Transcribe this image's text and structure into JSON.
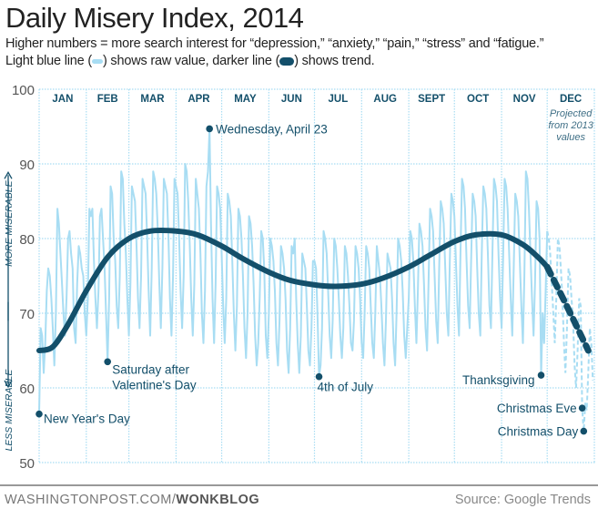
{
  "title": "Daily Misery Index, 2014",
  "subtitle_line1": "Higher numbers = more search interest for “depression,” “anxiety,” “pain,” “stress” and “fatigue.”",
  "legend": {
    "light_pre": "Light blue line (",
    "light_post": ") shows raw value, darker line (",
    "dark_post": ") shows trend."
  },
  "footer": {
    "site": "WASHINGTONPOST.COM/",
    "blog": "WONKBLOG",
    "source": "Source: Google Trends"
  },
  "colors": {
    "raw": "#a8ddf3",
    "trend": "#134f6a",
    "grid": "#a8ddf3",
    "label": "#134f6a"
  },
  "chart_data": {
    "type": "line",
    "title": "Daily Misery Index, 2014",
    "ylim": [
      50,
      100
    ],
    "yticks": [
      "50",
      "60",
      "70",
      "80",
      "90",
      "100"
    ],
    "ylabel_top": "MORE MISERABLE",
    "ylabel_bottom": "LESS MISERABLE",
    "grid": true,
    "months": [
      "JAN",
      "FEB",
      "MAR",
      "APR",
      "MAY",
      "JUN",
      "JUL",
      "AUG",
      "SEPT",
      "OCT",
      "NOV",
      "DEC"
    ],
    "month_days": [
      31,
      28,
      31,
      30,
      31,
      30,
      31,
      31,
      30,
      31,
      30,
      31
    ],
    "projection_note": [
      "Projected",
      "from 2013",
      "values"
    ],
    "projected_from_month": "DEC",
    "series": [
      {
        "label": "raw",
        "values": [
          56.5,
          68,
          67,
          62,
          66,
          73,
          76,
          75,
          72,
          68,
          63,
          70,
          84,
          82,
          78,
          74,
          70,
          67,
          72,
          80,
          81,
          78,
          76,
          68,
          66,
          74,
          79,
          78,
          76,
          75,
          70,
          67,
          72,
          84,
          83,
          84,
          77,
          72,
          68,
          73,
          83,
          84,
          80,
          76,
          70,
          63.5,
          72,
          87,
          86,
          80,
          77,
          71,
          68,
          75,
          89,
          88,
          82,
          78,
          72,
          67,
          74,
          87,
          86,
          85,
          79,
          72,
          68,
          75,
          88,
          87,
          86,
          80,
          73,
          67,
          76,
          89,
          88,
          86,
          81,
          74,
          68,
          76,
          88,
          87,
          86,
          80,
          72,
          67,
          75,
          88,
          87,
          86,
          80,
          73,
          68,
          75,
          90,
          89,
          85,
          79,
          72,
          67,
          74,
          88,
          86,
          84,
          78,
          70,
          66,
          73,
          87,
          89,
          94.7,
          82,
          72,
          66,
          74,
          87,
          86,
          84,
          78,
          71,
          66,
          72,
          86,
          85,
          83,
          77,
          70,
          65,
          71,
          84,
          83,
          80,
          75,
          68,
          64,
          70,
          83,
          82,
          79,
          74,
          67,
          63,
          66,
          72,
          81,
          80,
          76,
          67,
          64,
          70,
          80,
          79,
          77,
          73,
          66,
          63,
          69,
          79,
          78,
          76,
          72,
          65,
          62,
          68,
          79,
          78,
          80,
          72,
          66,
          62,
          67,
          78,
          77,
          76,
          71,
          65,
          63,
          68,
          77,
          77,
          76,
          70,
          61.5,
          63,
          68,
          81,
          80,
          78,
          73,
          67,
          64,
          69,
          80,
          79,
          76,
          72,
          67,
          64,
          68,
          79,
          78,
          75,
          71,
          66,
          65,
          69,
          79,
          78,
          76,
          72,
          66,
          64,
          70,
          79,
          78,
          76,
          71,
          66,
          64,
          70,
          79,
          77,
          75,
          71,
          66,
          63,
          69,
          78,
          77,
          76,
          72,
          66,
          63,
          70,
          80,
          79,
          77,
          73,
          67,
          64,
          68,
          72,
          81,
          80,
          77,
          71,
          66,
          73,
          82,
          81,
          79,
          74,
          68,
          65,
          74,
          84,
          83,
          81,
          75,
          69,
          66,
          76,
          85,
          84,
          82,
          76,
          70,
          67,
          77,
          86,
          85,
          83,
          77,
          71,
          67,
          78,
          88,
          87,
          84,
          77,
          71,
          68,
          77,
          86,
          85,
          83,
          76,
          70,
          67,
          78,
          87,
          86,
          84,
          78,
          71,
          68,
          78,
          88,
          87,
          85,
          78,
          72,
          68,
          77,
          88,
          87,
          84,
          78,
          72,
          67,
          76,
          86,
          85,
          83,
          77,
          71,
          66,
          75,
          89,
          88,
          84,
          78,
          72,
          67,
          74,
          85,
          84,
          80,
          61.7,
          70,
          66,
          73,
          81,
          80,
          78,
          74,
          70,
          66,
          72,
          80,
          79,
          76,
          72,
          66,
          62,
          68,
          76,
          75,
          72,
          69,
          63,
          60,
          65,
          72,
          71,
          57.3,
          54.2,
          58,
          57,
          62,
          68,
          66,
          61
        ]
      },
      {
        "label": "trend",
        "points": [
          [
            "Jan 1",
            65
          ],
          [
            "Jan 10",
            65.5
          ],
          [
            "Jan 20",
            68.5
          ],
          [
            "Feb 1",
            73
          ],
          [
            "Feb 15",
            77.5
          ],
          [
            "Mar 1",
            80
          ],
          [
            "Mar 15",
            81
          ],
          [
            "Apr 1",
            81
          ],
          [
            "Apr 15",
            80.5
          ],
          [
            "May 1",
            79
          ],
          [
            "May 15",
            77.3
          ],
          [
            "Jun 1",
            75.5
          ],
          [
            "Jun 15",
            74.4
          ],
          [
            "Jul 1",
            73.8
          ],
          [
            "Jul 15",
            73.6
          ],
          [
            "Aug 1",
            73.9
          ],
          [
            "Aug 15",
            74.7
          ],
          [
            "Sep 1",
            76.2
          ],
          [
            "Sep 15",
            77.8
          ],
          [
            "Oct 1",
            79.6
          ],
          [
            "Oct 15",
            80.5
          ],
          [
            "Nov 1",
            80.5
          ],
          [
            "Nov 15",
            79.2
          ],
          [
            "Nov 25",
            77.5
          ],
          [
            "Dec 1",
            76.2
          ],
          [
            "Dec 15",
            70.5
          ],
          [
            "Dec 28",
            65
          ]
        ]
      }
    ],
    "annotations": [
      {
        "label": "Wednesday, April 23",
        "date": "Apr 23",
        "value": 94.7
      },
      {
        "label": "Saturday after",
        "label2": "Valentine's Day",
        "date": "Feb 15",
        "value": 63.5
      },
      {
        "label": "New Year's Day",
        "date": "Jan 1",
        "value": 56.5
      },
      {
        "label": "4th of July",
        "date": "Jul 4",
        "value": 61.5
      },
      {
        "label": "Thanksgiving",
        "date": "Nov 27",
        "value": 61.7
      },
      {
        "label": "Christmas Eve",
        "date": "Dec 24",
        "value": 57.3
      },
      {
        "label": "Christmas Day",
        "date": "Dec 25",
        "value": 54.2
      }
    ]
  }
}
